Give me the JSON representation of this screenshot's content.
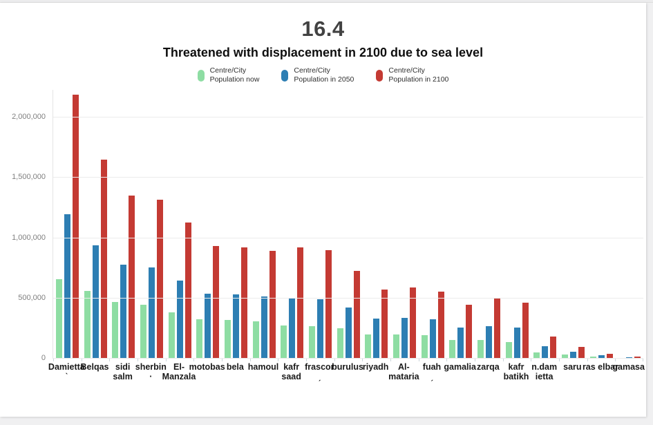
{
  "page": {
    "background_color": "#f0f0f1",
    "card_color": "#ffffff"
  },
  "header": {
    "title": "16.4",
    "subtitle": "Threatened with displacement in 2100 due to sea level"
  },
  "chart_data": {
    "type": "bar",
    "title": "16.4",
    "subtitle": "Threatened with displacement in 2100 due to sea level",
    "grid": true,
    "legend_position": "top",
    "ylim": [
      0,
      2230000
    ],
    "yticks": [
      {
        "value": 0,
        "label": "0"
      },
      {
        "value": 500000,
        "label": "500,000"
      },
      {
        "value": 1000000,
        "label": "1,000,000"
      },
      {
        "value": 1500000,
        "label": "1,500,000"
      },
      {
        "value": 2000000,
        "label": "2,000,000"
      }
    ],
    "categories": [
      "Damietta",
      "Belqas",
      "sidi salm",
      "sherbin",
      "El-Manzala",
      "motobas",
      "bela",
      "hamoul",
      "kafr saad",
      "frascor",
      "burulus",
      "riyadh",
      "Al-mataria",
      "fuah",
      "gamalia",
      "zarqa",
      "kafr batikh",
      "n.damietta",
      "saru",
      "ras elbar",
      "gamasa"
    ],
    "category_label_lines": [
      [
        "Damietta",
        "ˋ"
      ],
      [
        "Belqas"
      ],
      [
        "sidi",
        "salm"
      ],
      [
        "sherbin",
        "·"
      ],
      [
        "El-",
        "Manzala"
      ],
      [
        "motobas"
      ],
      [
        "bela"
      ],
      [
        "hamoul"
      ],
      [
        "kafr",
        "saad"
      ],
      [
        "frascor",
        "ˏ"
      ],
      [
        "burulus"
      ],
      [
        "riyadh"
      ],
      [
        "Al-",
        "mataria"
      ],
      [
        "fuah",
        "ˏ"
      ],
      [
        "gamalia"
      ],
      [
        "zarqa"
      ],
      [
        "kafr",
        "batikh"
      ],
      [
        "n.dam",
        "ietta"
      ],
      [
        "saru"
      ],
      [
        "ras elbar"
      ],
      [
        "gamasa"
      ]
    ],
    "series": [
      {
        "name": "Centre/City Population now",
        "name_line1": "Centre/City",
        "name_line2": "Population now",
        "color": "#8edda3",
        "values": [
          660000,
          562000,
          472000,
          449000,
          384000,
          327000,
          321000,
          312000,
          277000,
          272000,
          252000,
          201000,
          201000,
          195000,
          153000,
          155000,
          140000,
          54000,
          33000,
          17000,
          6000
        ]
      },
      {
        "name": "Centre/City Population in 2050",
        "name_line1": "Centre/City",
        "name_line2": "Population in 2050",
        "color": "#2d7eb3",
        "values": [
          1200000,
          943000,
          780000,
          755000,
          648000,
          541000,
          534000,
          516000,
          505000,
          493000,
          426000,
          333000,
          337000,
          329000,
          258000,
          271000,
          258000,
          101000,
          56000,
          28000,
          10000
        ]
      },
      {
        "name": "Centre/City Population in 2100",
        "name_line1": "Centre/City",
        "name_line2": "Population in 2100",
        "color": "#c43a33",
        "values": [
          2190000,
          1650000,
          1352000,
          1316000,
          1130000,
          933000,
          924000,
          893000,
          924000,
          899000,
          729000,
          576000,
          591000,
          555000,
          446000,
          498000,
          465000,
          182000,
          100000,
          42000,
          17000
        ]
      }
    ]
  }
}
